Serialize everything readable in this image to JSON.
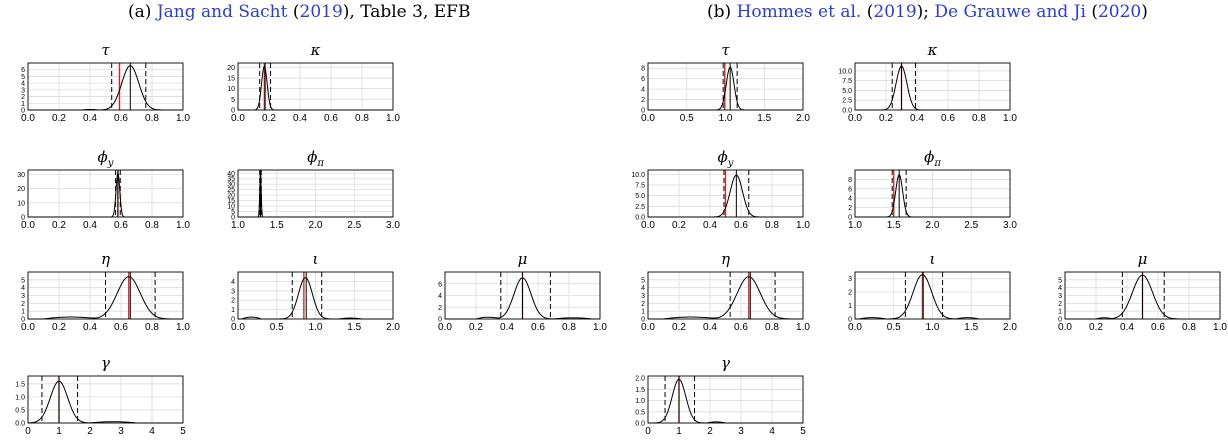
{
  "panels": [
    {
      "id": "a",
      "caption": [
        {
          "text": "(a) ",
          "link": false
        },
        {
          "text": "Jang and Sacht",
          "link": true
        },
        {
          "text": " (",
          "link": false
        },
        {
          "text": "2019",
          "link": true
        },
        {
          "text": "), Table 3, EFB",
          "link": false
        }
      ]
    },
    {
      "id": "b",
      "caption": [
        {
          "text": "(b) ",
          "link": false
        },
        {
          "text": "Hommes et al.",
          "link": true
        },
        {
          "text": " (",
          "link": false
        },
        {
          "text": "2019",
          "link": true
        },
        {
          "text": "); ",
          "link": false
        },
        {
          "text": "De Grauwe and Ji",
          "link": true
        },
        {
          "text": " (",
          "link": false
        },
        {
          "text": "2020",
          "link": true
        },
        {
          "text": ")",
          "link": false
        }
      ]
    }
  ],
  "chart_data": [
    {
      "panel": "a",
      "title": "τ",
      "type": "line",
      "xlim": [
        0,
        1
      ],
      "xticks": [
        "0.0",
        "0.2",
        "0.4",
        "0.6",
        "0.8",
        "1.0"
      ],
      "ylim": [
        0,
        7
      ],
      "yticks": [
        "0",
        "1",
        "2",
        "3",
        "4",
        "5",
        "6"
      ],
      "line_color": "#d42020",
      "mode": 0.66,
      "sigma": 0.055,
      "peak": 6.6,
      "red": 0.59,
      "median": 0.66,
      "dashed": [
        0.54,
        0.76
      ],
      "tails": [
        [
          0.35,
          0.45,
          0.08
        ]
      ]
    },
    {
      "panel": "a",
      "title": "κ",
      "type": "line",
      "xlim": [
        0,
        1
      ],
      "xticks": [
        "0.0",
        "0.2",
        "0.4",
        "0.6",
        "0.8",
        "1.0"
      ],
      "ylim": [
        0,
        22
      ],
      "yticks": [
        "0",
        "5",
        "10",
        "15",
        "20"
      ],
      "line_color": "#d42020",
      "mode": 0.17,
      "sigma": 0.018,
      "peak": 20.5,
      "red": 0.17,
      "median": 0.175,
      "dashed": [
        0.14,
        0.21
      ],
      "tails": []
    },
    {
      "panel": "a",
      "title": "ϕ_y",
      "type": "line",
      "xlim": [
        0,
        1
      ],
      "xticks": [
        "0.0",
        "0.2",
        "0.4",
        "0.6",
        "0.8",
        "1.0"
      ],
      "ylim": [
        0,
        33
      ],
      "yticks": [
        "0",
        "10",
        "20",
        "30"
      ],
      "line_color": "#d42020",
      "mode": 0.58,
      "sigma": 0.012,
      "peak": 31,
      "red": 0.58,
      "median": 0.58,
      "dashed": [
        0.565,
        0.595
      ],
      "tails": []
    },
    {
      "panel": "a",
      "title": "ϕ_π",
      "type": "line",
      "xlim": [
        1,
        3
      ],
      "xticks": [
        "1.0",
        "1.5",
        "2.0",
        "2.5",
        "3.0"
      ],
      "ylim": [
        0,
        43
      ],
      "yticks": [
        "0",
        "5",
        "10",
        "15",
        "20",
        "25",
        "30",
        "35",
        "40"
      ],
      "line_color": "#d42020",
      "mode": 1.29,
      "sigma": 0.009,
      "peak": 41,
      "red": 1.29,
      "median": 1.29,
      "dashed": [
        1.28,
        1.3
      ],
      "tails": []
    },
    {
      "panel": "a",
      "title": "η",
      "type": "line",
      "xlim": [
        0,
        1
      ],
      "xticks": [
        "0.0",
        "0.2",
        "0.4",
        "0.6",
        "0.8",
        "1.0"
      ],
      "ylim": [
        0,
        6
      ],
      "yticks": [
        "0",
        "1",
        "2",
        "3",
        "4",
        "5"
      ],
      "line_color": "#d42020",
      "mode": 0.65,
      "sigma": 0.075,
      "peak": 5.4,
      "red": 0.65,
      "median": 0.66,
      "dashed": [
        0.5,
        0.82
      ],
      "tails": [
        [
          0.1,
          0.45,
          0.25
        ]
      ]
    },
    {
      "panel": "a",
      "title": "ι",
      "type": "line",
      "xlim": [
        0,
        2
      ],
      "xticks": [
        "0.0",
        "0.5",
        "1.0",
        "1.5",
        "2.0"
      ],
      "ylim": [
        0,
        5
      ],
      "yticks": [
        "0",
        "1",
        "2",
        "3",
        "4"
      ],
      "line_color": "#d42020",
      "mode": 0.87,
      "sigma": 0.09,
      "peak": 4.4,
      "red": 0.85,
      "median": 0.88,
      "dashed": [
        0.7,
        1.08
      ],
      "tails": [
        [
          0.05,
          0.3,
          0.2
        ],
        [
          1.3,
          1.6,
          0.1
        ]
      ]
    },
    {
      "panel": "a",
      "title": "μ",
      "type": "line",
      "xlim": [
        0,
        1
      ],
      "xticks": [
        "0.0",
        "0.2",
        "0.4",
        "0.6",
        "0.8",
        "1.0"
      ],
      "ylim": [
        0,
        8
      ],
      "yticks": [
        "0",
        "2",
        "4",
        "6"
      ],
      "line_color": "#d42020",
      "mode": 0.5,
      "sigma": 0.055,
      "peak": 7.0,
      "red": 0.5,
      "median": 0.5,
      "dashed": [
        0.36,
        0.68
      ],
      "tails": [
        [
          0.2,
          0.35,
          0.3
        ],
        [
          0.7,
          0.95,
          0.2
        ]
      ]
    },
    {
      "panel": "a",
      "title": "γ",
      "type": "line",
      "xlim": [
        0,
        5
      ],
      "xticks": [
        "0",
        "1",
        "2",
        "3",
        "4",
        "5"
      ],
      "ylim": [
        0,
        1.8
      ],
      "yticks": [
        "0.0",
        "0.5",
        "1.0",
        "1.5"
      ],
      "line_color": "#d42020",
      "mode": 1.0,
      "sigma": 0.28,
      "peak": 1.6,
      "red": 1.0,
      "median": 1.0,
      "dashed": [
        0.45,
        1.6
      ],
      "tails": [
        [
          2.0,
          3.5,
          0.05
        ]
      ]
    },
    {
      "panel": "b",
      "title": "τ",
      "type": "line",
      "xlim": [
        0,
        2
      ],
      "xticks": [
        "0.0",
        "0.5",
        "1.0",
        "1.5",
        "2.0"
      ],
      "ylim": [
        0,
        9
      ],
      "yticks": [
        "0",
        "2",
        "4",
        "6",
        "8"
      ],
      "line_color": "#d42020",
      "mode": 1.06,
      "sigma": 0.05,
      "peak": 8.2,
      "red": 0.99,
      "median": 1.06,
      "dashed": [
        0.97,
        1.15
      ],
      "tails": []
    },
    {
      "panel": "b",
      "title": "κ",
      "type": "line",
      "xlim": [
        0,
        1
      ],
      "xticks": [
        "0.0",
        "0.2",
        "0.4",
        "0.6",
        "0.8",
        "1.0"
      ],
      "ylim": [
        0,
        12
      ],
      "yticks": [
        "0.0",
        "2.5",
        "5.0",
        "7.5",
        "10.0"
      ],
      "line_color": "#d42020",
      "mode": 0.3,
      "sigma": 0.035,
      "peak": 11.2,
      "red": 0.3,
      "median": 0.3,
      "dashed": [
        0.24,
        0.39
      ],
      "tails": []
    },
    {
      "panel": "b",
      "title": "ϕ_y",
      "type": "line",
      "xlim": [
        0,
        1
      ],
      "xticks": [
        "0.0",
        "0.2",
        "0.4",
        "0.6",
        "0.8",
        "1.0"
      ],
      "ylim": [
        0,
        11
      ],
      "yticks": [
        "0.0",
        "2.5",
        "5.0",
        "7.5",
        "10.0"
      ],
      "line_color": "#d42020",
      "mode": 0.57,
      "sigma": 0.04,
      "peak": 9.8,
      "red": 0.5,
      "median": 0.57,
      "dashed": [
        0.49,
        0.65
      ],
      "tails": []
    },
    {
      "panel": "b",
      "title": "ϕ_π",
      "type": "line",
      "xlim": [
        1,
        3
      ],
      "xticks": [
        "1.0",
        "1.5",
        "2.0",
        "2.5",
        "3.0"
      ],
      "ylim": [
        0,
        10
      ],
      "yticks": [
        "0",
        "2",
        "4",
        "6",
        "8"
      ],
      "line_color": "#d42020",
      "mode": 1.57,
      "sigma": 0.045,
      "peak": 9.0,
      "red": 1.5,
      "median": 1.57,
      "dashed": [
        1.48,
        1.66
      ],
      "tails": []
    },
    {
      "panel": "b",
      "title": "η",
      "type": "line",
      "xlim": [
        0,
        1
      ],
      "xticks": [
        "0.0",
        "0.2",
        "0.4",
        "0.6",
        "0.8",
        "1.0"
      ],
      "ylim": [
        0,
        6
      ],
      "yticks": [
        "0",
        "1",
        "2",
        "3",
        "4",
        "5"
      ],
      "line_color": "#d42020",
      "mode": 0.65,
      "sigma": 0.075,
      "peak": 5.4,
      "red": 0.65,
      "median": 0.66,
      "dashed": [
        0.53,
        0.82
      ],
      "tails": [
        [
          0.1,
          0.45,
          0.25
        ]
      ]
    },
    {
      "panel": "b",
      "title": "ι",
      "type": "line",
      "xlim": [
        0,
        2
      ],
      "xticks": [
        "0.0",
        "0.5",
        "1.0",
        "1.5",
        "2.0"
      ],
      "ylim": [
        0,
        3.5
      ],
      "yticks": [
        "0",
        "1",
        "2",
        "3"
      ],
      "line_color": "#d42020",
      "mode": 0.87,
      "sigma": 0.12,
      "peak": 3.3,
      "red": 0.87,
      "median": 0.88,
      "dashed": [
        0.65,
        1.13
      ],
      "tails": [
        [
          0.05,
          0.4,
          0.1
        ],
        [
          1.3,
          1.6,
          0.1
        ]
      ]
    },
    {
      "panel": "b",
      "title": "μ",
      "type": "line",
      "xlim": [
        0,
        1
      ],
      "xticks": [
        "0.0",
        "0.2",
        "0.4",
        "0.6",
        "0.8",
        "1.0"
      ],
      "ylim": [
        0,
        6
      ],
      "yticks": [
        "0",
        "1",
        "2",
        "3",
        "4",
        "5"
      ],
      "line_color": "#d42020",
      "mode": 0.5,
      "sigma": 0.065,
      "peak": 5.6,
      "red": 0.5,
      "median": 0.5,
      "dashed": [
        0.37,
        0.64
      ],
      "tails": [
        [
          0.2,
          0.3,
          0.15
        ]
      ]
    },
    {
      "panel": "b",
      "title": "γ",
      "type": "line",
      "xlim": [
        0,
        5
      ],
      "xticks": [
        "0",
        "1",
        "2",
        "3",
        "4",
        "5"
      ],
      "ylim": [
        0,
        2.1
      ],
      "yticks": [
        "0.0",
        "0.5",
        "1.0",
        "1.5",
        "2.0"
      ],
      "line_color": "#d42020",
      "mode": 1.0,
      "sigma": 0.22,
      "peak": 1.95,
      "red": 1.0,
      "median": 1.0,
      "dashed": [
        0.55,
        1.5
      ],
      "tails": [
        [
          1.9,
          2.5,
          0.05
        ]
      ]
    }
  ]
}
